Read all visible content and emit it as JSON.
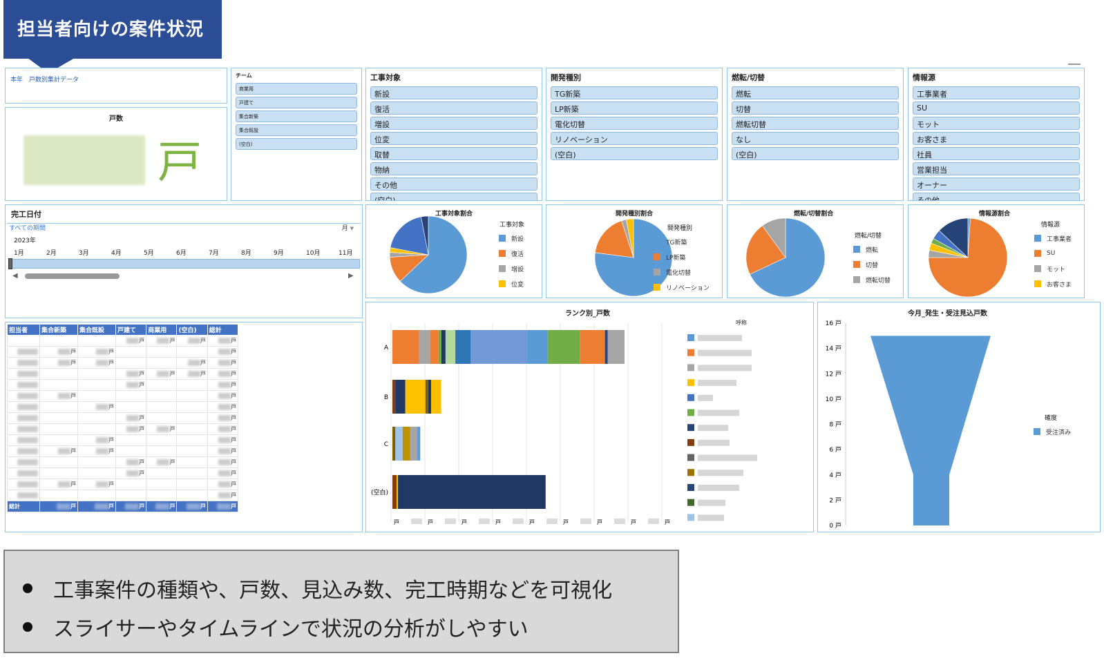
{
  "callout": {
    "title": "担当者向けの案件状況"
  },
  "kpi": {
    "link_text": "本年　戸数別集計データ",
    "label": "戸数",
    "unit": "戸"
  },
  "team": {
    "title": "チーム",
    "items": [
      "商業用",
      "戸建て",
      "集合新築",
      "集合既設",
      "(空白)"
    ]
  },
  "construction_target": {
    "title": "工事対象",
    "items": [
      "新設",
      "復活",
      "増設",
      "位変",
      "取替",
      "物納",
      "その他",
      "(空白)"
    ]
  },
  "dev_type": {
    "title": "開発種別",
    "items": [
      "TG新築",
      "LP新築",
      "電化切替",
      "リノベーション",
      "(空白)"
    ]
  },
  "fuel_switch": {
    "title": "燃転/切替",
    "items": [
      "燃転",
      "切替",
      "燃転切替",
      "なし",
      "(空白)"
    ]
  },
  "info_source": {
    "title": "情報源",
    "items": [
      "工事業者",
      "SU",
      "モット",
      "お客さま",
      "社員",
      "営業担当",
      "オーナー",
      "その他"
    ]
  },
  "timeline": {
    "title": "完工日付",
    "all_periods": "すべての期間",
    "granularity": "月",
    "year": "2023年",
    "months": [
      "1月",
      "2月",
      "3月",
      "4月",
      "5月",
      "6月",
      "7月",
      "8月",
      "9月",
      "10月",
      "11月"
    ]
  },
  "pivot": {
    "headers": [
      "担当者",
      "集合新築",
      "集合既設",
      "戸建て",
      "商業用",
      "(空白)",
      "総計"
    ],
    "unit": "戸",
    "total_label": "総計"
  },
  "pie1": {
    "title": "工事対象割合",
    "legend_title": "工事対象",
    "legend": [
      "新設",
      "復活",
      "増設",
      "位変"
    ]
  },
  "pie2": {
    "title": "開発種別割合",
    "legend_title": "開発種別",
    "legend": [
      "TG新築",
      "LP新築",
      "電化切替",
      "リノベーション"
    ]
  },
  "pie3": {
    "title": "燃転/切替割合",
    "legend_title": "燃転/切替",
    "legend": [
      "燃転",
      "切替",
      "燃転切替"
    ]
  },
  "pie4": {
    "title": "情報源割合",
    "legend_title": "情報源",
    "legend": [
      "工事業者",
      "SU",
      "モット",
      "お客さま"
    ]
  },
  "rank_chart": {
    "title": "ランク別_戸数",
    "legend_title": "呼称",
    "categories": [
      "A",
      "B",
      "C",
      "(空白)"
    ],
    "unit": "戸"
  },
  "funnel": {
    "title": "今月_発生・受注見込戸数",
    "legend_title": "確度",
    "legend": [
      "受注済み"
    ],
    "ticks": [
      "16 戸",
      "14 戸",
      "12 戸",
      "10 戸",
      "8 戸",
      "6 戸",
      "4 戸",
      "2 戸",
      "0 戸"
    ]
  },
  "bullets": [
    "工事案件の種類や、戸数、見込み数、完工時期などを可視化",
    "スライサーやタイムラインで状況の分析がしやすい"
  ],
  "colors": {
    "blue": "#5b9bd5",
    "orange": "#ed7d31",
    "gray": "#a5a5a5",
    "yellow": "#ffc000",
    "darkblue": "#264478",
    "navy": "#1f3864",
    "green": "#70ad47",
    "accent": "#2b4d95"
  },
  "chart_data": [
    {
      "type": "pie",
      "title": "工事対象割合",
      "labels": [
        "新設",
        "復活",
        "増設",
        "位変",
        "取替",
        "物納"
      ],
      "values": [
        63,
        11,
        2,
        2,
        19,
        3
      ]
    },
    {
      "type": "pie",
      "title": "開発種別割合",
      "labels": [
        "TG新築",
        "LP新築",
        "電化切替",
        "リノベーション"
      ],
      "values": [
        77,
        18,
        2,
        3
      ]
    },
    {
      "type": "pie",
      "title": "燃転/切替割合",
      "labels": [
        "燃転",
        "切替",
        "燃転切替"
      ],
      "values": [
        68,
        22,
        10
      ]
    },
    {
      "type": "pie",
      "title": "情報源割合",
      "labels": [
        "工事業者",
        "SU",
        "モット",
        "お客さま",
        "社員",
        "営業担当",
        "オーナー"
      ],
      "values": [
        1,
        74,
        3,
        3,
        2,
        4,
        13
      ]
    },
    {
      "type": "bar",
      "title": "ランク別_戸数",
      "categories": [
        "A",
        "B",
        "C",
        "(空白)"
      ],
      "values": [
        100,
        21,
        12,
        66
      ]
    },
    {
      "type": "area",
      "title": "今月_発生・受注見込戸数",
      "series": [
        {
          "name": "受注済み",
          "values": [
            15,
            4,
            0
          ]
        }
      ],
      "ylim": [
        0,
        16
      ]
    }
  ]
}
